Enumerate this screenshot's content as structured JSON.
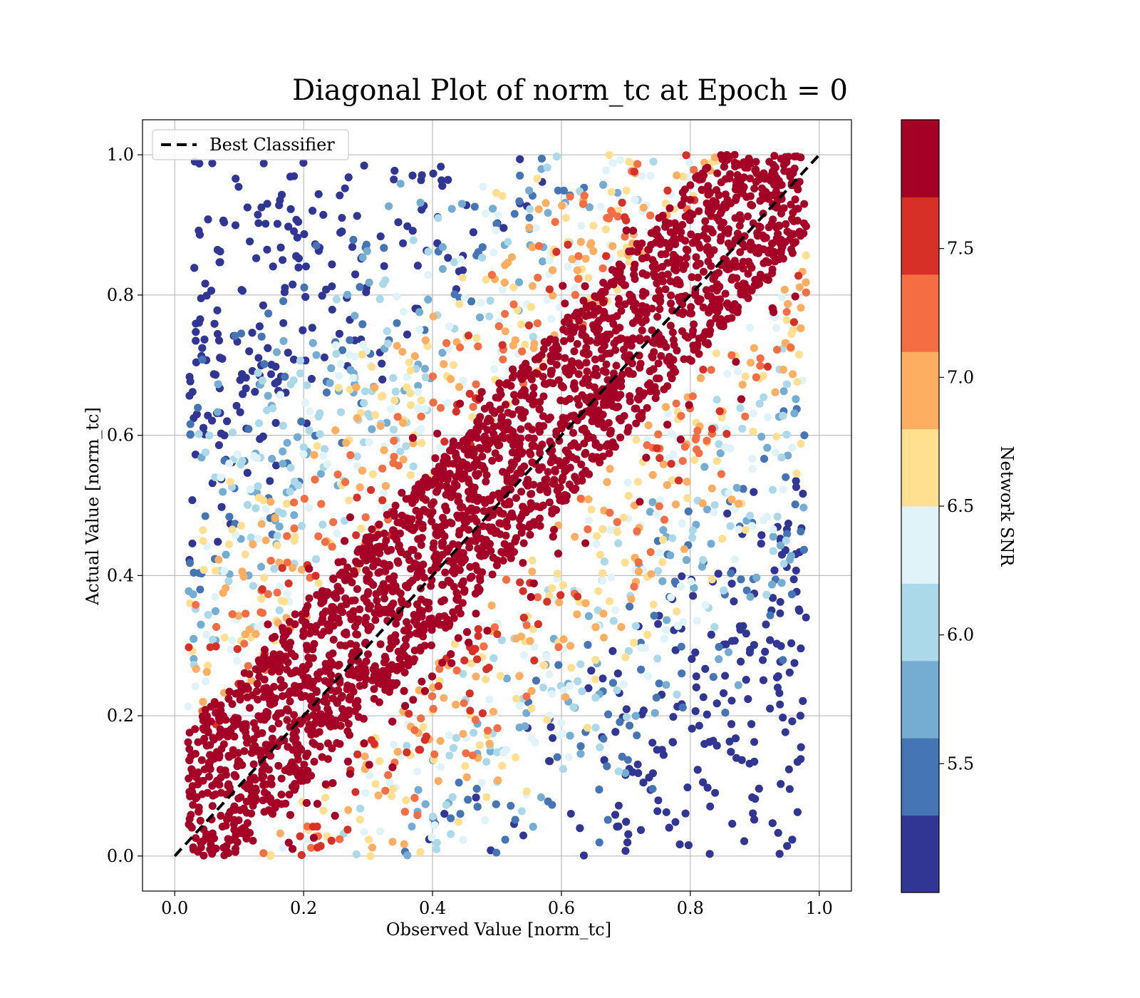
{
  "chart_data": {
    "type": "scatter",
    "title": "Diagonal Plot of norm_tc at Epoch = 0",
    "xlabel": "Observed Value [norm_tc]",
    "ylabel": "Actual Value [norm_tc]",
    "xlim": [
      -0.05,
      1.05
    ],
    "ylim": [
      -0.05,
      1.05
    ],
    "xticks": [
      "0.0",
      "0.2",
      "0.4",
      "0.6",
      "0.8",
      "1.0"
    ],
    "yticks": [
      "0.0",
      "0.2",
      "0.4",
      "0.6",
      "0.8",
      "1.0"
    ],
    "grid": true,
    "legend": {
      "location": "upper-left",
      "entries": [
        {
          "label": "Best Classifier",
          "style": "dashed",
          "color": "#000000"
        }
      ]
    },
    "reference_line": {
      "x": [
        0.0,
        1.0
      ],
      "y": [
        0.0,
        1.0
      ]
    },
    "points_description": {
      "x_range": [
        0.02,
        0.98
      ],
      "y_range": [
        0.0,
        1.0
      ],
      "note": "Dense band of high-SNR points along y=x; lower-SNR points scattered away from the diagonal."
    },
    "colorbar": {
      "label": "Network SNR",
      "range": [
        5.0,
        8.0
      ],
      "ticks": [
        "5.5",
        "6.0",
        "6.5",
        "7.0",
        "7.5"
      ],
      "tick_values": [
        5.5,
        6.0,
        6.5,
        7.0,
        7.5
      ],
      "colors": [
        "#313695",
        "#4575b4",
        "#74add1",
        "#abd9e9",
        "#e0f3f8",
        "#fee090",
        "#fdae61",
        "#f46d43",
        "#d73027",
        "#a50026"
      ]
    }
  }
}
